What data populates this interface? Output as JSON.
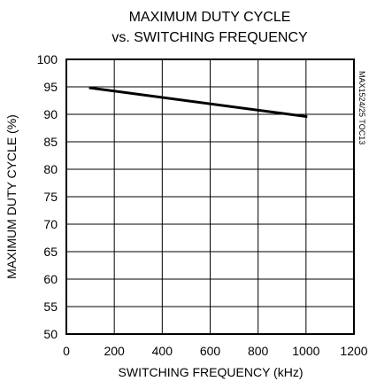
{
  "chart_data": {
    "type": "line",
    "title": [
      "MAXIMUM DUTY CYCLE",
      "vs. SWITCHING FREQUENCY"
    ],
    "xlabel": "SWITCHING FREQUENCY (kHz)",
    "ylabel": "MAXIMUM DUTY CYCLE (%)",
    "xlim": [
      0,
      1200
    ],
    "ylim": [
      50,
      100
    ],
    "x_ticks": [
      0,
      200,
      400,
      600,
      800,
      1000,
      1200
    ],
    "y_ticks": [
      50,
      55,
      60,
      65,
      70,
      75,
      80,
      85,
      90,
      95,
      100
    ],
    "grid": true,
    "series": [
      {
        "x": [
          100,
          1000
        ],
        "y": [
          94.8,
          89.6
        ]
      }
    ],
    "side_note": "MAX1524/25 TOC13"
  },
  "colors": {
    "background": "#ffffff",
    "axis": "#000000",
    "grid": "#000000",
    "line": "#000000"
  }
}
